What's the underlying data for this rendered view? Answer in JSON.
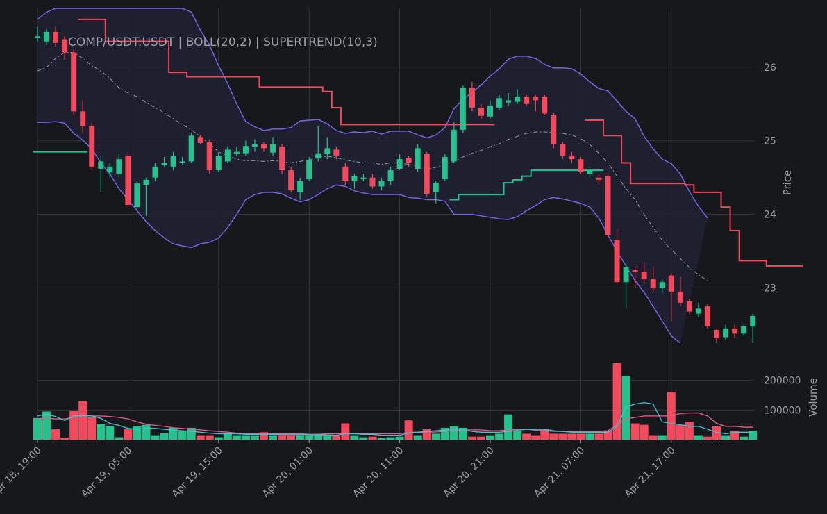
{
  "chart_data": {
    "type": "candlestick",
    "title": "COMP/USDT:USDT | BOLL(20,2) | SUPERTREND(10,3)",
    "ylabel": "Price",
    "volume_label": "Volume",
    "ylim": [
      22.1,
      26.8
    ],
    "volume_ylim": [
      0,
      260000
    ],
    "price_ticks": [
      23,
      24,
      25,
      26
    ],
    "volume_ticks": [
      100000,
      200000
    ],
    "x_tick_labels": [
      "Apr 18, 19:00",
      "Apr 19, 05:00",
      "Apr 19, 15:00",
      "Apr 20, 01:00",
      "Apr 20, 11:00",
      "Apr 20, 21:00",
      "Apr 21, 07:00",
      "Apr 21, 17:00"
    ],
    "x_tick_every_bars": 10,
    "bar_interval": "1h",
    "colors": {
      "up": "#26c28e",
      "down": "#f2495c",
      "band": "#7b68ee",
      "band_fill": "#1f2133",
      "middle": "#9a9aa5",
      "volume_ma_cyan": "#3fc7d6",
      "volume_ma_pink": "#e25f8f"
    },
    "candles": [
      [
        26.4,
        26.42,
        26.35,
        26.55
      ],
      [
        26.35,
        26.48,
        26.3,
        26.52
      ],
      [
        26.48,
        26.33,
        26.28,
        26.55
      ],
      [
        26.38,
        26.2,
        26.1,
        26.42
      ],
      [
        26.2,
        25.4,
        25.35,
        26.25
      ],
      [
        25.4,
        25.2,
        25.1,
        25.55
      ],
      [
        25.2,
        24.65,
        24.6,
        25.25
      ],
      [
        24.62,
        24.72,
        24.3,
        24.8
      ],
      [
        24.57,
        24.65,
        24.5,
        24.7
      ],
      [
        24.55,
        24.75,
        24.5,
        24.82
      ],
      [
        24.8,
        24.13,
        24.1,
        24.85
      ],
      [
        24.1,
        24.42,
        24.07,
        24.45
      ],
      [
        24.4,
        24.47,
        23.98,
        24.5
      ],
      [
        24.5,
        24.65,
        24.45,
        24.7
      ],
      [
        24.67,
        24.7,
        24.65,
        24.78
      ],
      [
        24.65,
        24.8,
        24.6,
        24.85
      ],
      [
        24.7,
        24.72,
        24.68,
        24.78
      ],
      [
        24.72,
        25.07,
        24.7,
        25.1
      ],
      [
        25.05,
        24.97,
        24.95,
        25.08
      ],
      [
        24.98,
        24.6,
        24.55,
        25.02
      ],
      [
        24.6,
        24.8,
        24.58,
        24.85
      ],
      [
        24.72,
        24.88,
        24.7,
        24.92
      ],
      [
        24.82,
        24.85,
        24.8,
        24.92
      ],
      [
        24.83,
        24.93,
        24.8,
        25.0
      ],
      [
        24.92,
        24.95,
        24.85,
        25.02
      ],
      [
        24.95,
        24.9,
        24.85,
        24.98
      ],
      [
        24.84,
        24.95,
        24.8,
        25.05
      ],
      [
        24.92,
        24.6,
        24.55,
        24.95
      ],
      [
        24.6,
        24.33,
        24.3,
        24.65
      ],
      [
        24.3,
        24.45,
        24.2,
        24.5
      ],
      [
        24.48,
        24.74,
        24.45,
        24.78
      ],
      [
        24.76,
        24.83,
        24.72,
        25.2
      ],
      [
        24.82,
        24.9,
        24.75,
        25.05
      ],
      [
        24.88,
        24.8,
        24.75,
        24.92
      ],
      [
        24.65,
        24.45,
        24.4,
        24.7
      ],
      [
        24.45,
        24.52,
        24.35,
        24.55
      ],
      [
        24.5,
        24.5,
        24.45,
        24.55
      ],
      [
        24.5,
        24.38,
        24.35,
        24.55
      ],
      [
        24.38,
        24.45,
        24.33,
        24.5
      ],
      [
        24.45,
        24.6,
        24.4,
        24.65
      ],
      [
        24.62,
        24.75,
        24.6,
        24.82
      ],
      [
        24.77,
        24.7,
        24.65,
        24.8
      ],
      [
        24.62,
        24.9,
        24.58,
        24.95
      ],
      [
        24.82,
        24.28,
        24.25,
        24.85
      ],
      [
        24.3,
        24.43,
        24.15,
        24.45
      ],
      [
        24.48,
        24.78,
        24.45,
        24.82
      ],
      [
        24.72,
        25.15,
        24.7,
        25.25
      ],
      [
        25.15,
        25.72,
        25.1,
        25.75
      ],
      [
        25.72,
        25.45,
        25.4,
        25.8
      ],
      [
        25.45,
        25.34,
        25.3,
        25.5
      ],
      [
        25.33,
        25.48,
        25.3,
        25.55
      ],
      [
        25.45,
        25.58,
        25.42,
        25.62
      ],
      [
        25.52,
        25.55,
        25.48,
        25.65
      ],
      [
        25.53,
        25.6,
        25.5,
        25.7
      ],
      [
        25.6,
        25.5,
        25.48,
        25.62
      ],
      [
        25.6,
        25.55,
        25.4,
        25.62
      ],
      [
        25.6,
        25.37,
        25.35,
        25.62
      ],
      [
        25.35,
        24.95,
        24.9,
        25.38
      ],
      [
        24.95,
        24.8,
        24.75,
        24.98
      ],
      [
        24.8,
        24.75,
        24.7,
        24.85
      ],
      [
        24.75,
        24.58,
        24.55,
        24.78
      ],
      [
        24.55,
        24.6,
        24.5,
        24.65
      ],
      [
        24.5,
        24.47,
        24.4,
        24.55
      ],
      [
        24.52,
        23.72,
        23.68,
        24.55
      ],
      [
        23.65,
        23.08,
        23.05,
        23.8
      ],
      [
        23.08,
        23.28,
        22.72,
        23.35
      ],
      [
        23.25,
        23.22,
        23.0,
        23.3
      ],
      [
        23.22,
        23.12,
        23.05,
        23.35
      ],
      [
        23.12,
        23.0,
        22.95,
        23.3
      ],
      [
        23.0,
        23.08,
        22.92,
        23.12
      ],
      [
        23.17,
        22.95,
        22.55,
        23.2
      ],
      [
        22.95,
        22.8,
        22.75,
        23.15
      ],
      [
        22.82,
        22.68,
        22.65,
        22.85
      ],
      [
        22.65,
        22.72,
        22.6,
        22.8
      ],
      [
        22.75,
        22.48,
        22.45,
        22.78
      ],
      [
        22.43,
        22.32,
        22.25,
        22.45
      ],
      [
        22.33,
        22.45,
        22.3,
        22.5
      ],
      [
        22.45,
        22.38,
        22.32,
        22.5
      ],
      [
        22.38,
        22.48,
        22.35,
        22.5
      ],
      [
        22.48,
        22.62,
        22.25,
        22.65
      ]
    ],
    "volume": [
      73000,
      95000,
      35000,
      7000,
      97000,
      130000,
      75000,
      52000,
      45000,
      8000,
      35000,
      45000,
      50000,
      15000,
      22000,
      40000,
      30000,
      40000,
      15000,
      15000,
      8000,
      20000,
      15000,
      15000,
      15000,
      25000,
      15000,
      15000,
      15000,
      15000,
      15000,
      20000,
      15000,
      12000,
      55000,
      15000,
      8000,
      10000,
      5000,
      8000,
      10000,
      65000,
      15000,
      35000,
      20000,
      40000,
      45000,
      40000,
      10000,
      10000,
      15000,
      20000,
      85000,
      30000,
      20000,
      15000,
      35000,
      20000,
      20000,
      20000,
      20000,
      20000,
      20000,
      30000,
      260000,
      215000,
      55000,
      50000,
      15000,
      15000,
      160000,
      50000,
      60000,
      15000,
      10000,
      45000,
      15000,
      30000,
      10000,
      30000
    ],
    "upper_band": [
      25.25,
      25.25,
      25.26,
      25.24,
      25.1,
      25.01,
      24.89,
      24.7,
      24.55,
      24.35,
      24.2,
      24.05,
      23.9,
      23.78,
      23.68,
      23.6,
      23.57,
      23.55,
      23.6,
      23.62,
      23.68,
      23.82,
      24.0,
      24.2,
      24.27,
      24.3,
      24.3,
      24.28,
      24.22,
      24.17,
      24.2,
      24.27,
      24.35,
      24.4,
      24.38,
      24.32,
      24.29,
      24.27,
      24.27,
      24.27,
      24.27,
      24.23,
      24.22,
      24.2,
      24.2,
      24.18,
      24.0,
      24.0,
      24.0,
      23.98,
      23.96,
      23.94,
      23.93,
      23.97,
      24.05,
      24.12,
      24.2,
      24.23,
      24.21,
      24.18,
      24.15,
      24.1,
      23.95,
      23.72,
      23.5,
      23.3,
      23.1,
      22.94,
      22.75,
      22.55,
      22.35,
      22.25
    ],
    "middle_band": [
      25.95,
      26.0,
      26.12,
      26.2,
      26.2,
      26.12,
      26.02,
      25.95,
      25.85,
      25.72,
      25.65,
      25.6,
      25.52,
      25.45,
      25.38,
      25.3,
      25.22,
      25.15,
      25.05,
      24.96,
      24.85,
      24.8,
      24.75,
      24.73,
      24.73,
      24.72,
      24.73,
      24.72,
      24.7,
      24.72,
      24.74,
      24.78,
      24.79,
      24.77,
      24.74,
      24.72,
      24.7,
      24.7,
      24.68,
      24.7,
      24.7,
      24.68,
      24.65,
      24.62,
      24.64,
      24.68,
      24.72,
      24.78,
      24.83,
      24.87,
      24.92,
      24.96,
      25.02,
      25.06,
      25.1,
      25.12,
      25.12,
      25.11,
      25.1,
      25.08,
      25.03,
      24.95,
      24.83,
      24.7,
      24.52,
      24.35,
      24.2,
      24.0,
      23.82,
      23.65,
      23.52,
      23.4,
      23.28,
      23.18,
      23.1
    ],
    "supertrend_red_1": [
      26.65,
      26.65,
      26.65,
      26.35,
      26.35,
      26.35,
      26.35,
      26.35,
      26.35,
      26.35,
      25.93,
      25.93,
      25.87,
      25.87,
      25.87,
      25.87,
      25.87,
      25.87,
      25.87,
      25.87,
      25.73,
      25.73,
      25.73,
      25.73,
      25.73,
      25.73,
      25.73,
      25.67,
      25.45,
      25.22,
      25.22,
      25.22,
      25.22,
      25.22,
      25.22,
      25.22,
      25.22,
      25.22,
      25.22,
      25.22,
      25.22,
      25.22,
      25.22,
      25.22,
      25.22,
      25.22
    ],
    "supertrend_red_2": [
      25.28,
      25.28,
      25.07,
      25.07,
      24.7,
      24.42,
      24.42,
      24.42,
      24.42,
      24.42,
      24.42,
      24.4,
      24.3,
      24.3,
      24.3,
      24.1,
      23.78,
      23.37,
      23.37,
      23.37,
      23.3,
      23.3,
      23.3,
      23.3
    ],
    "supertrend_green_1": [
      24.85,
      24.85,
      24.85,
      24.85,
      24.85,
      24.85
    ],
    "supertrend_green_2": [
      24.2,
      24.27,
      24.27,
      24.27,
      24.27,
      24.27,
      24.43,
      24.47,
      24.52,
      24.6,
      24.6,
      24.6,
      24.6,
      24.6,
      24.6,
      24.6,
      24.6
    ],
    "volume_ma_cyan": [
      80000,
      86000,
      78000,
      65000,
      80000,
      82000,
      80000,
      72000,
      55000,
      48000,
      38000,
      35000,
      38000,
      38000,
      35000,
      32000,
      30000,
      28000,
      25000,
      22000,
      20000,
      20000,
      20000,
      18000,
      18000,
      18000,
      18000,
      17000,
      17000,
      17000,
      17000,
      16000,
      16000,
      15000,
      20000,
      20000,
      18000,
      18000,
      15000,
      15000,
      15000,
      22000,
      25000,
      28000,
      30000,
      33000,
      33000,
      33000,
      28000,
      25000,
      25000,
      25000,
      28000,
      32000,
      35000,
      35000,
      35000,
      30000,
      28000,
      25000,
      25000,
      25000,
      25000,
      25000,
      45000,
      110000,
      120000,
      125000,
      120000,
      60000,
      55000,
      50000,
      45000,
      45000,
      35000,
      25000,
      20000,
      25000,
      25000,
      25000
    ],
    "volume_ma_pink": [
      70000,
      73000,
      70000,
      70000,
      75000,
      80000,
      80000,
      80000,
      78000,
      75000,
      70000,
      60000,
      52000,
      48000,
      45000,
      40000,
      38000,
      35000,
      33000,
      30000,
      28000,
      25000,
      22000,
      20000,
      20000,
      20000,
      20000,
      20000,
      20000,
      20000,
      18000,
      18000,
      20000,
      20000,
      20000,
      20000,
      20000,
      20000,
      20000,
      20000,
      20000,
      25000,
      25000,
      25000,
      26000,
      28000,
      30000,
      33000,
      33000,
      33000,
      30000,
      30000,
      33000,
      35000,
      35000,
      32000,
      30000,
      28000,
      28000,
      28000,
      28000,
      28000,
      28000,
      30000,
      50000,
      70000,
      75000,
      80000,
      80000,
      80000,
      80000,
      88000,
      90000,
      90000,
      80000,
      55000,
      45000,
      45000,
      42000,
      42000
    ]
  }
}
